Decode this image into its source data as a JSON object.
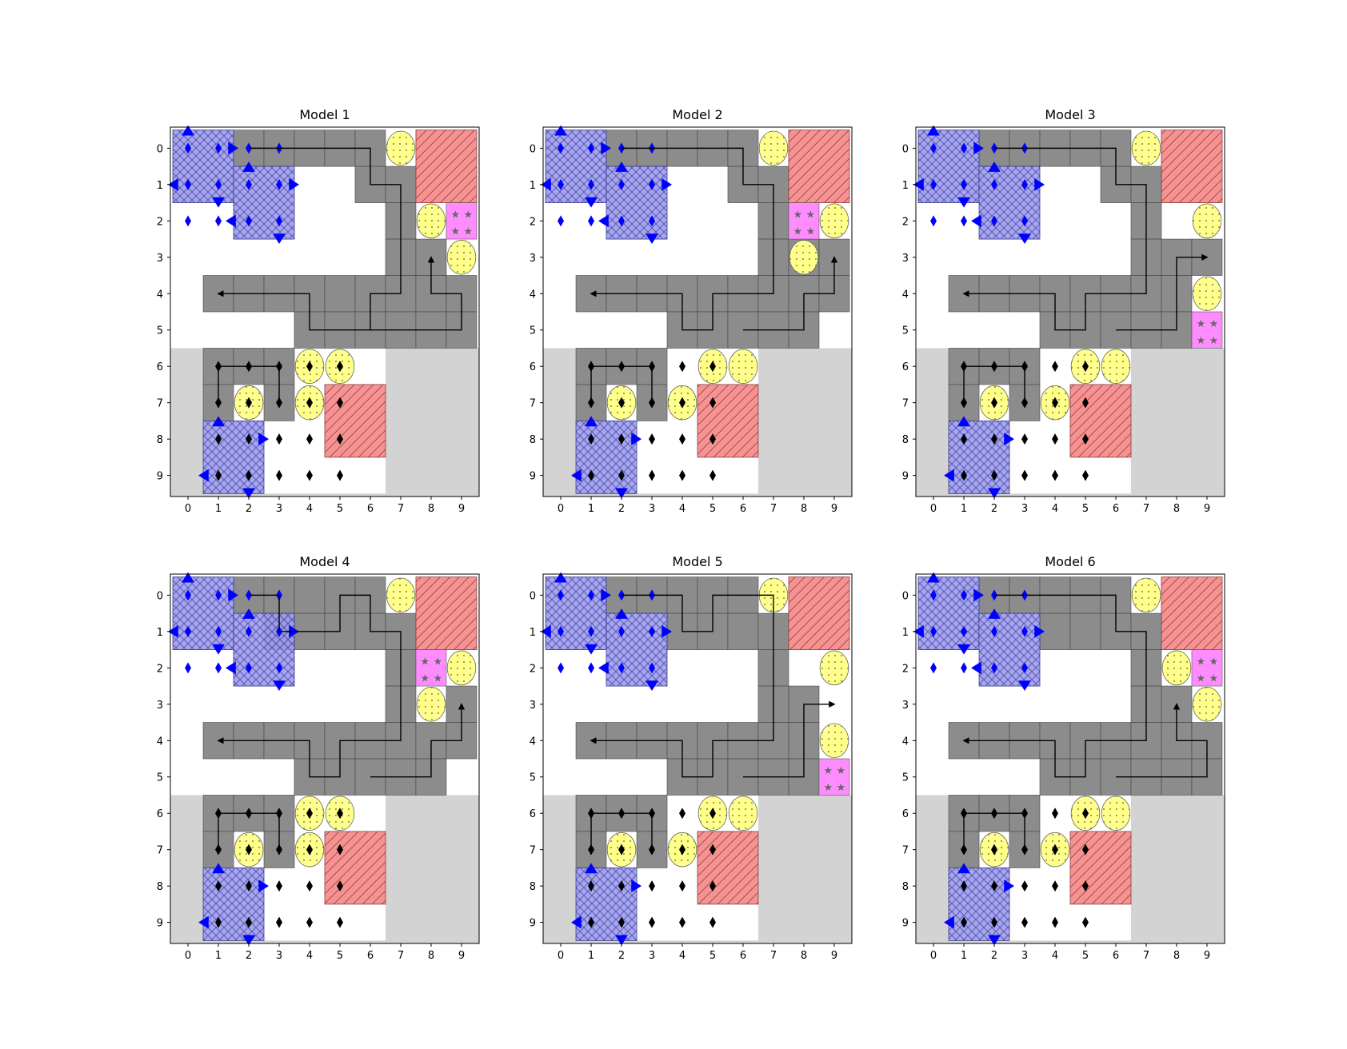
{
  "figure": {
    "panels": [
      {
        "title": "Model 1",
        "gray_cells": [
          [
            0,
            2
          ],
          [
            0,
            3
          ],
          [
            0,
            4
          ],
          [
            0,
            5
          ],
          [
            0,
            6
          ],
          [
            1,
            6
          ],
          [
            1,
            7
          ],
          [
            2,
            7
          ],
          [
            3,
            7
          ],
          [
            3,
            8
          ],
          [
            4,
            1
          ],
          [
            4,
            2
          ],
          [
            4,
            3
          ],
          [
            4,
            4
          ],
          [
            4,
            5
          ],
          [
            4,
            6
          ],
          [
            4,
            7
          ],
          [
            4,
            8
          ],
          [
            4,
            9
          ],
          [
            5,
            4
          ],
          [
            5,
            5
          ],
          [
            5,
            6
          ],
          [
            5,
            7
          ],
          [
            5,
            8
          ],
          [
            5,
            9
          ],
          [
            6,
            1
          ],
          [
            6,
            2
          ],
          [
            6,
            3
          ],
          [
            7,
            1
          ],
          [
            7,
            3
          ]
        ],
        "yellow_circles": [
          [
            0,
            7
          ],
          [
            2,
            8
          ],
          [
            3,
            9
          ],
          [
            6,
            4
          ],
          [
            6,
            5
          ],
          [
            7,
            2
          ],
          [
            7,
            4
          ]
        ],
        "pink_squares": [
          [
            2,
            9
          ]
        ],
        "path": [
          [
            0,
            2
          ],
          [
            0,
            6
          ],
          [
            1,
            6
          ],
          [
            1,
            7
          ],
          [
            4,
            7
          ],
          [
            4,
            6
          ],
          [
            5,
            6
          ],
          [
            5,
            5
          ],
          [
            5,
            4
          ],
          [
            4,
            4
          ],
          [
            4,
            1
          ]
        ],
        "path2": [
          [
            5,
            6
          ],
          [
            5,
            9
          ],
          [
            4,
            9
          ],
          [
            4,
            8
          ],
          [
            3,
            8
          ]
        ],
        "arrow_ends": [
          [
            3,
            8
          ]
        ]
      },
      {
        "title": "Model 2",
        "gray_cells": [
          [
            0,
            2
          ],
          [
            0,
            3
          ],
          [
            0,
            4
          ],
          [
            0,
            5
          ],
          [
            0,
            6
          ],
          [
            1,
            6
          ],
          [
            1,
            7
          ],
          [
            2,
            7
          ],
          [
            3,
            7
          ],
          [
            3,
            8
          ],
          [
            3,
            9
          ],
          [
            4,
            1
          ],
          [
            4,
            2
          ],
          [
            4,
            3
          ],
          [
            4,
            4
          ],
          [
            4,
            5
          ],
          [
            4,
            6
          ],
          [
            4,
            7
          ],
          [
            4,
            8
          ],
          [
            4,
            9
          ],
          [
            5,
            4
          ],
          [
            5,
            5
          ],
          [
            5,
            6
          ],
          [
            5,
            7
          ],
          [
            5,
            8
          ],
          [
            6,
            1
          ],
          [
            6,
            2
          ],
          [
            6,
            3
          ],
          [
            7,
            1
          ],
          [
            7,
            3
          ]
        ],
        "yellow_circles": [
          [
            0,
            7
          ],
          [
            2,
            9
          ],
          [
            3,
            8
          ],
          [
            6,
            5
          ],
          [
            6,
            6
          ],
          [
            7,
            2
          ],
          [
            7,
            4
          ]
        ],
        "pink_squares": [
          [
            2,
            8
          ]
        ],
        "path": [
          [
            0,
            2
          ],
          [
            0,
            6
          ],
          [
            1,
            6
          ],
          [
            1,
            7
          ],
          [
            4,
            7
          ],
          [
            4,
            5
          ],
          [
            5,
            5
          ],
          [
            5,
            4
          ],
          [
            4,
            4
          ],
          [
            4,
            1
          ]
        ],
        "path2": [
          [
            5,
            6
          ],
          [
            5,
            8
          ],
          [
            4,
            8
          ],
          [
            4,
            9
          ],
          [
            3,
            9
          ]
        ],
        "arrow_ends": [
          [
            3,
            9
          ]
        ]
      },
      {
        "title": "Model 3",
        "gray_cells": [
          [
            0,
            2
          ],
          [
            0,
            3
          ],
          [
            0,
            4
          ],
          [
            0,
            5
          ],
          [
            0,
            6
          ],
          [
            1,
            6
          ],
          [
            1,
            7
          ],
          [
            2,
            7
          ],
          [
            3,
            7
          ],
          [
            3,
            8
          ],
          [
            3,
            9
          ],
          [
            4,
            1
          ],
          [
            4,
            2
          ],
          [
            4,
            3
          ],
          [
            4,
            4
          ],
          [
            4,
            5
          ],
          [
            4,
            6
          ],
          [
            4,
            7
          ],
          [
            4,
            8
          ],
          [
            5,
            4
          ],
          [
            5,
            5
          ],
          [
            5,
            6
          ],
          [
            5,
            7
          ],
          [
            5,
            8
          ],
          [
            6,
            1
          ],
          [
            6,
            2
          ],
          [
            6,
            3
          ],
          [
            7,
            1
          ],
          [
            7,
            3
          ]
        ],
        "yellow_circles": [
          [
            0,
            7
          ],
          [
            2,
            9
          ],
          [
            4,
            9
          ],
          [
            6,
            5
          ],
          [
            6,
            6
          ],
          [
            7,
            2
          ],
          [
            7,
            4
          ]
        ],
        "pink_squares": [
          [
            5,
            9
          ]
        ],
        "path": [
          [
            0,
            2
          ],
          [
            0,
            6
          ],
          [
            1,
            6
          ],
          [
            1,
            7
          ],
          [
            4,
            7
          ],
          [
            4,
            5
          ],
          [
            5,
            5
          ],
          [
            5,
            4
          ],
          [
            4,
            4
          ],
          [
            4,
            1
          ]
        ],
        "path2": [
          [
            5,
            6
          ],
          [
            5,
            8
          ],
          [
            3,
            8
          ],
          [
            3,
            9
          ]
        ],
        "arrow_ends": [
          [
            3,
            9
          ]
        ]
      },
      {
        "title": "Model 4",
        "gray_cells": [
          [
            0,
            2
          ],
          [
            0,
            3
          ],
          [
            0,
            4
          ],
          [
            0,
            5
          ],
          [
            0,
            6
          ],
          [
            1,
            3
          ],
          [
            1,
            4
          ],
          [
            1,
            5
          ],
          [
            1,
            6
          ],
          [
            1,
            7
          ],
          [
            2,
            7
          ],
          [
            3,
            7
          ],
          [
            3,
            9
          ],
          [
            4,
            1
          ],
          [
            4,
            2
          ],
          [
            4,
            3
          ],
          [
            4,
            4
          ],
          [
            4,
            5
          ],
          [
            4,
            6
          ],
          [
            4,
            7
          ],
          [
            4,
            8
          ],
          [
            4,
            9
          ],
          [
            5,
            4
          ],
          [
            5,
            5
          ],
          [
            5,
            6
          ],
          [
            5,
            7
          ],
          [
            5,
            8
          ],
          [
            6,
            1
          ],
          [
            6,
            2
          ],
          [
            6,
            3
          ],
          [
            7,
            1
          ],
          [
            7,
            3
          ]
        ],
        "yellow_circles": [
          [
            0,
            7
          ],
          [
            2,
            9
          ],
          [
            3,
            8
          ],
          [
            6,
            4
          ],
          [
            6,
            5
          ],
          [
            7,
            2
          ],
          [
            7,
            4
          ]
        ],
        "pink_squares": [
          [
            2,
            8
          ]
        ],
        "path": [
          [
            0,
            2
          ],
          [
            0,
            3
          ],
          [
            1,
            3
          ],
          [
            1,
            5
          ],
          [
            0,
            5
          ],
          [
            0,
            6
          ],
          [
            1,
            6
          ],
          [
            1,
            7
          ],
          [
            4,
            7
          ],
          [
            4,
            5
          ],
          [
            5,
            5
          ],
          [
            5,
            4
          ],
          [
            4,
            4
          ],
          [
            4,
            1
          ]
        ],
        "path2": [
          [
            5,
            6
          ],
          [
            5,
            8
          ],
          [
            4,
            8
          ],
          [
            4,
            9
          ],
          [
            3,
            9
          ]
        ],
        "arrow_ends": [
          [
            3,
            9
          ]
        ]
      },
      {
        "title": "Model 5",
        "gray_cells": [
          [
            0,
            2
          ],
          [
            0,
            3
          ],
          [
            0,
            4
          ],
          [
            0,
            5
          ],
          [
            0,
            6
          ],
          [
            1,
            4
          ],
          [
            1,
            5
          ],
          [
            1,
            6
          ],
          [
            1,
            7
          ],
          [
            2,
            7
          ],
          [
            3,
            7
          ],
          [
            3,
            8
          ],
          [
            4,
            1
          ],
          [
            4,
            2
          ],
          [
            4,
            3
          ],
          [
            4,
            4
          ],
          [
            4,
            5
          ],
          [
            4,
            6
          ],
          [
            4,
            7
          ],
          [
            4,
            8
          ],
          [
            5,
            4
          ],
          [
            5,
            5
          ],
          [
            5,
            6
          ],
          [
            5,
            7
          ],
          [
            5,
            8
          ],
          [
            6,
            1
          ],
          [
            6,
            2
          ],
          [
            6,
            3
          ],
          [
            7,
            1
          ],
          [
            7,
            3
          ]
        ],
        "yellow_circles": [
          [
            0,
            7
          ],
          [
            2,
            9
          ],
          [
            4,
            9
          ],
          [
            6,
            5
          ],
          [
            6,
            6
          ],
          [
            7,
            2
          ],
          [
            7,
            4
          ]
        ],
        "pink_squares": [
          [
            5,
            9
          ]
        ],
        "path": [
          [
            0,
            2
          ],
          [
            0,
            4
          ],
          [
            1,
            4
          ],
          [
            1,
            5
          ],
          [
            0,
            5
          ],
          [
            0,
            7
          ],
          [
            4,
            7
          ],
          [
            4,
            5
          ],
          [
            5,
            5
          ],
          [
            5,
            4
          ],
          [
            4,
            4
          ],
          [
            4,
            1
          ]
        ],
        "path2": [
          [
            5,
            6
          ],
          [
            5,
            8
          ],
          [
            3,
            8
          ],
          [
            3,
            9
          ]
        ],
        "arrow_ends": [
          [
            3,
            9
          ]
        ]
      },
      {
        "title": "Model 6",
        "gray_cells": [
          [
            0,
            2
          ],
          [
            0,
            3
          ],
          [
            0,
            4
          ],
          [
            0,
            5
          ],
          [
            0,
            6
          ],
          [
            1,
            4
          ],
          [
            1,
            5
          ],
          [
            1,
            6
          ],
          [
            1,
            7
          ],
          [
            2,
            7
          ],
          [
            3,
            7
          ],
          [
            3,
            8
          ],
          [
            4,
            1
          ],
          [
            4,
            2
          ],
          [
            4,
            3
          ],
          [
            4,
            4
          ],
          [
            4,
            5
          ],
          [
            4,
            6
          ],
          [
            4,
            7
          ],
          [
            4,
            8
          ],
          [
            4,
            9
          ],
          [
            5,
            4
          ],
          [
            5,
            5
          ],
          [
            5,
            6
          ],
          [
            5,
            7
          ],
          [
            5,
            8
          ],
          [
            5,
            9
          ],
          [
            6,
            1
          ],
          [
            6,
            2
          ],
          [
            6,
            3
          ],
          [
            7,
            1
          ],
          [
            7,
            3
          ]
        ],
        "yellow_circles": [
          [
            0,
            7
          ],
          [
            2,
            8
          ],
          [
            3,
            9
          ],
          [
            6,
            5
          ],
          [
            6,
            6
          ],
          [
            7,
            2
          ],
          [
            7,
            4
          ]
        ],
        "pink_squares": [
          [
            2,
            9
          ]
        ],
        "path": [
          [
            0,
            2
          ],
          [
            0,
            6
          ],
          [
            1,
            6
          ],
          [
            1,
            7
          ],
          [
            4,
            7
          ],
          [
            4,
            5
          ],
          [
            5,
            5
          ],
          [
            5,
            4
          ],
          [
            4,
            4
          ],
          [
            4,
            1
          ]
        ],
        "path2": [
          [
            5,
            6
          ],
          [
            5,
            9
          ],
          [
            4,
            9
          ],
          [
            4,
            8
          ],
          [
            3,
            8
          ]
        ],
        "arrow_ends": [
          [
            3,
            8
          ]
        ]
      }
    ],
    "ticks": [
      "0",
      "1",
      "2",
      "3",
      "4",
      "5",
      "6",
      "7",
      "8",
      "9"
    ],
    "colors": {
      "gray_cell": "#8c8c8c",
      "bottom_region": "#d3d3d3",
      "blue_region": "#9b9bf2",
      "blue_marker": "#0000ff",
      "black_marker": "#000000",
      "red_region": "#f78c8c",
      "yellow_circle": "#ffff8a",
      "pink_square": "#ff8cff"
    }
  }
}
